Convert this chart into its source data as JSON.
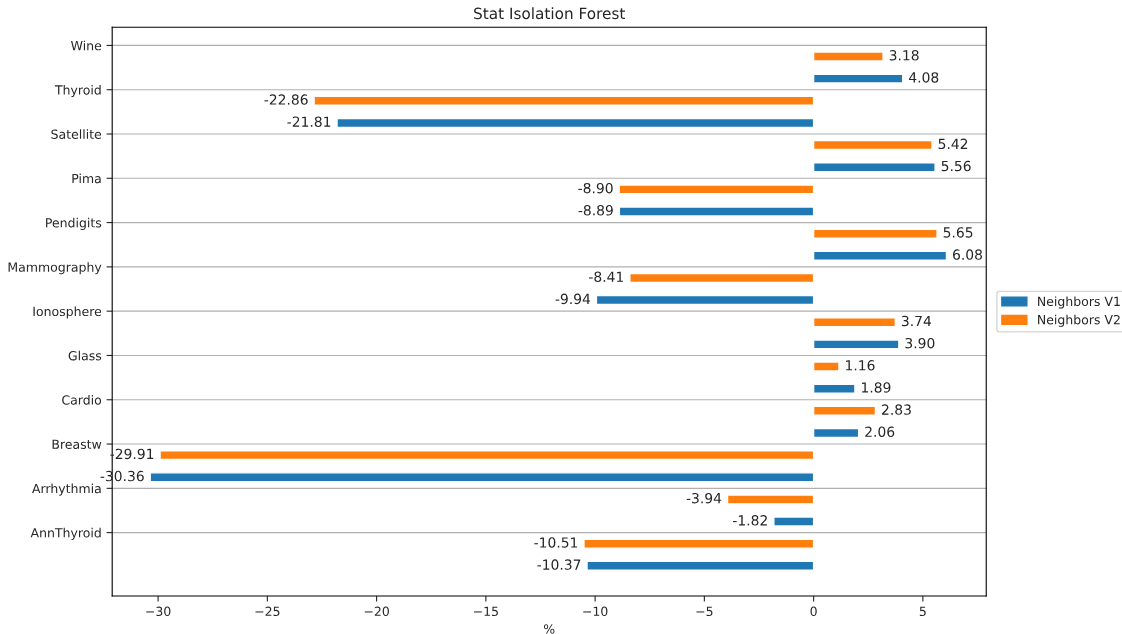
{
  "chart_data": {
    "type": "bar",
    "orientation": "horizontal",
    "title": "Stat Isolation Forest",
    "xlabel": "%",
    "categories": [
      "Wine",
      "Thyroid",
      "Satellite",
      "Pima",
      "Pendigits",
      "Mammography",
      "Ionosphere",
      "Glass",
      "Cardio",
      "Breastw",
      "Arrhythmia",
      "AnnThyroid"
    ],
    "series": [
      {
        "name": "Neighbors V1",
        "color": "#1f77b4",
        "values": [
          4.08,
          -21.81,
          5.56,
          -8.89,
          6.08,
          -9.94,
          3.9,
          1.89,
          2.06,
          -30.36,
          -1.82,
          -10.37
        ],
        "value_labels": [
          "4.08",
          "-21.81",
          "5.56",
          "-8.89",
          "6.08",
          "-9.94",
          "3.90",
          "1.89",
          "2.06",
          "-30.36",
          "-1.82",
          "-10.37"
        ]
      },
      {
        "name": "Neighbors V2",
        "color": "#ff7f0e",
        "values": [
          3.18,
          -22.86,
          5.42,
          -8.9,
          5.65,
          -8.41,
          3.74,
          1.16,
          2.83,
          -29.91,
          -3.94,
          -10.51
        ],
        "value_labels": [
          "3.18",
          "-22.86",
          "5.42",
          "-8.90",
          "5.65",
          "-8.41",
          "3.74",
          "1.16",
          "2.83",
          "-29.91",
          "-3.94",
          "-10.51"
        ]
      }
    ],
    "xlim": [
      -32.1,
      7.9
    ],
    "xticks": [
      {
        "value": -30,
        "label": "−30"
      },
      {
        "value": -25,
        "label": "−25"
      },
      {
        "value": -20,
        "label": "−20"
      },
      {
        "value": -15,
        "label": "−15"
      },
      {
        "value": -10,
        "label": "−10"
      },
      {
        "value": -5,
        "label": "−5"
      },
      0,
      5
    ],
    "grid": "y",
    "legend": "right"
  }
}
